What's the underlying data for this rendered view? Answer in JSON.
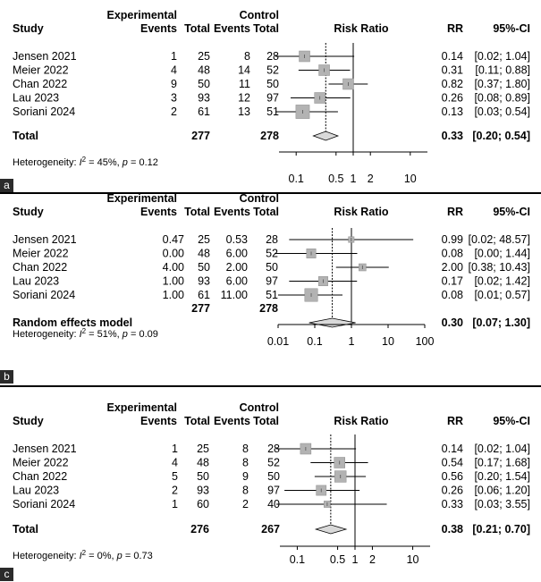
{
  "chart_data": [
    {
      "type": "forest",
      "panel_label": "a",
      "headers": {
        "group1": "Experimental",
        "group2": "Control",
        "study": "Study",
        "events": "Events",
        "total": "Total",
        "plot": "Risk Ratio",
        "rr": "RR",
        "ci": "95%-CI"
      },
      "studies": [
        {
          "name": "Jensen 2021",
          "e_events": "1",
          "e_total": "25",
          "c_events": "8",
          "c_total": "28",
          "rr": 0.14,
          "lo": 0.02,
          "hi": 1.04,
          "rr_text": "0.14",
          "ci_text": "[0.02; 1.04]",
          "weight": 1.0
        },
        {
          "name": "Meier 2022",
          "e_events": "4",
          "e_total": "48",
          "c_events": "14",
          "c_total": "52",
          "rr": 0.31,
          "lo": 0.11,
          "hi": 0.88,
          "rr_text": "0.31",
          "ci_text": "[0.11; 0.88]",
          "weight": 1.0
        },
        {
          "name": "Chan 2022",
          "e_events": "9",
          "e_total": "50",
          "c_events": "11",
          "c_total": "50",
          "rr": 0.82,
          "lo": 0.37,
          "hi": 1.8,
          "rr_text": "0.82",
          "ci_text": "[0.37; 1.80]",
          "weight": 1.0
        },
        {
          "name": "Lau 2023",
          "e_events": "3",
          "e_total": "93",
          "c_events": "12",
          "c_total": "97",
          "rr": 0.26,
          "lo": 0.08,
          "hi": 0.89,
          "rr_text": "0.26",
          "ci_text": "[0.08; 0.89]",
          "weight": 1.0
        },
        {
          "name": "Soriani 2024",
          "e_events": "2",
          "e_total": "61",
          "c_events": "13",
          "c_total": "51",
          "rr": 0.13,
          "lo": 0.03,
          "hi": 0.54,
          "rr_text": "0.13",
          "ci_text": "[0.03; 0.54]",
          "weight": 1.4
        }
      ],
      "pooled": {
        "label": "Total",
        "e_total": "277",
        "c_total": "278",
        "rr": 0.33,
        "lo": 0.2,
        "hi": 0.54,
        "rr_text": "0.33",
        "ci_text": "[0.20; 0.54]"
      },
      "heterogeneity": {
        "prefix": "Heterogeneity: ",
        "i2": "45%",
        "p": "0.12"
      },
      "axis": {
        "scale": "log",
        "xlim": [
          0.05,
          20
        ],
        "ticks": [
          0.1,
          0.5,
          1,
          2,
          10
        ],
        "tick_labels": [
          "0.1",
          "0.5",
          "1",
          "2",
          "10"
        ]
      }
    },
    {
      "type": "forest",
      "panel_label": "b",
      "headers": {
        "group1": "Experimental",
        "group2": "Control",
        "study": "Study",
        "events": "Events",
        "total": "Total",
        "plot": "Risk Ratio",
        "rr": "RR",
        "ci": "95%-CI"
      },
      "studies": [
        {
          "name": "Jensen 2021",
          "e_events": "0.47",
          "e_total": "25",
          "c_events": "0.53",
          "c_total": "28",
          "rr": 0.99,
          "lo": 0.02,
          "hi": 48.57,
          "rr_text": "0.99",
          "ci_text": "[0.02; 48.57]",
          "weight": 0.3
        },
        {
          "name": "Meier 2022",
          "e_events": "0.00",
          "e_total": "48",
          "c_events": "6.00",
          "c_total": "52",
          "rr": 0.08,
          "lo": 0.0,
          "hi": 1.44,
          "rr_text": "0.08",
          "ci_text": "[0.00; 1.44]",
          "weight": 0.8
        },
        {
          "name": "Chan 2022",
          "e_events": "4.00",
          "e_total": "50",
          "c_events": "2.00",
          "c_total": "50",
          "rr": 2.0,
          "lo": 0.38,
          "hi": 10.43,
          "rr_text": "2.00",
          "ci_text": "[0.38; 10.43]",
          "weight": 0.5
        },
        {
          "name": "Lau 2023",
          "e_events": "1.00",
          "e_total": "93",
          "c_events": "6.00",
          "c_total": "97",
          "rr": 0.17,
          "lo": 0.02,
          "hi": 1.42,
          "rr_text": "0.17",
          "ci_text": "[0.02; 1.42]",
          "weight": 0.8
        },
        {
          "name": "Soriani 2024",
          "e_events": "1.00",
          "e_total": "61",
          "c_events": "11.00",
          "c_total": "51",
          "rr": 0.08,
          "lo": 0.01,
          "hi": 0.57,
          "rr_text": "0.08",
          "ci_text": "[0.01; 0.57]",
          "weight": 1.3
        }
      ],
      "pooled": {
        "label": "Random effects model",
        "e_total": "277",
        "c_total": "278",
        "rr": 0.3,
        "lo": 0.07,
        "hi": 1.3,
        "rr_text": "0.30",
        "ci_text": "[0.07; 1.30]"
      },
      "heterogeneity": {
        "prefix": "Heterogeneity: ",
        "i2": "51%",
        "p": "0.09"
      },
      "axis": {
        "scale": "log",
        "xlim": [
          0.01,
          100
        ],
        "ticks": [
          0.01,
          0.1,
          1,
          10,
          100
        ],
        "tick_labels": [
          "0.01",
          "0.1",
          "1",
          "10",
          "100"
        ]
      }
    },
    {
      "type": "forest",
      "panel_label": "c",
      "headers": {
        "group1": "Experimental",
        "group2": "Control",
        "study": "Study",
        "events": "Events",
        "total": "Total",
        "plot": "Risk Ratio",
        "rr": "RR",
        "ci": "95%-CI"
      },
      "studies": [
        {
          "name": "Jensen 2021",
          "e_events": "1",
          "e_total": "25",
          "c_events": "8",
          "c_total": "28",
          "rr": 0.14,
          "lo": 0.02,
          "hi": 1.04,
          "rr_text": "0.14",
          "ci_text": "[0.02; 1.04]",
          "weight": 1.0
        },
        {
          "name": "Meier 2022",
          "e_events": "4",
          "e_total": "48",
          "c_events": "8",
          "c_total": "52",
          "rr": 0.54,
          "lo": 0.17,
          "hi": 1.68,
          "rr_text": "0.54",
          "ci_text": "[0.17; 1.68]",
          "weight": 1.0
        },
        {
          "name": "Chan 2022",
          "e_events": "5",
          "e_total": "50",
          "c_events": "9",
          "c_total": "50",
          "rr": 0.56,
          "lo": 0.2,
          "hi": 1.54,
          "rr_text": "0.56",
          "ci_text": "[0.20; 1.54]",
          "weight": 1.1
        },
        {
          "name": "Lau 2023",
          "e_events": "2",
          "e_total": "93",
          "c_events": "8",
          "c_total": "97",
          "rr": 0.26,
          "lo": 0.06,
          "hi": 1.2,
          "rr_text": "0.26",
          "ci_text": "[0.06; 1.20]",
          "weight": 0.9
        },
        {
          "name": "Soriani 2024",
          "e_events": "1",
          "e_total": "60",
          "c_events": "2",
          "c_total": "40",
          "rr": 0.33,
          "lo": 0.03,
          "hi": 3.55,
          "rr_text": "0.33",
          "ci_text": "[0.03; 3.55]",
          "weight": 0.4
        }
      ],
      "pooled": {
        "label": "Total",
        "e_total": "276",
        "c_total": "267",
        "rr": 0.38,
        "lo": 0.21,
        "hi": 0.7,
        "rr_text": "0.38",
        "ci_text": "[0.21; 0.70]"
      },
      "heterogeneity": {
        "prefix": "Heterogeneity: ",
        "i2": "0%",
        "p": "0.73"
      },
      "axis": {
        "scale": "log",
        "xlim": [
          0.05,
          20
        ],
        "ticks": [
          0.1,
          0.5,
          1,
          2,
          10
        ],
        "tick_labels": [
          "0.1",
          "0.5",
          "1",
          "2",
          "10"
        ]
      }
    }
  ],
  "colors": {
    "square": "#b3b3b3",
    "square_border": "#8c8c8c",
    "diamond": "#d9d9d9",
    "line": "#000000",
    "panel_label_bg": "#2b2b2b"
  }
}
